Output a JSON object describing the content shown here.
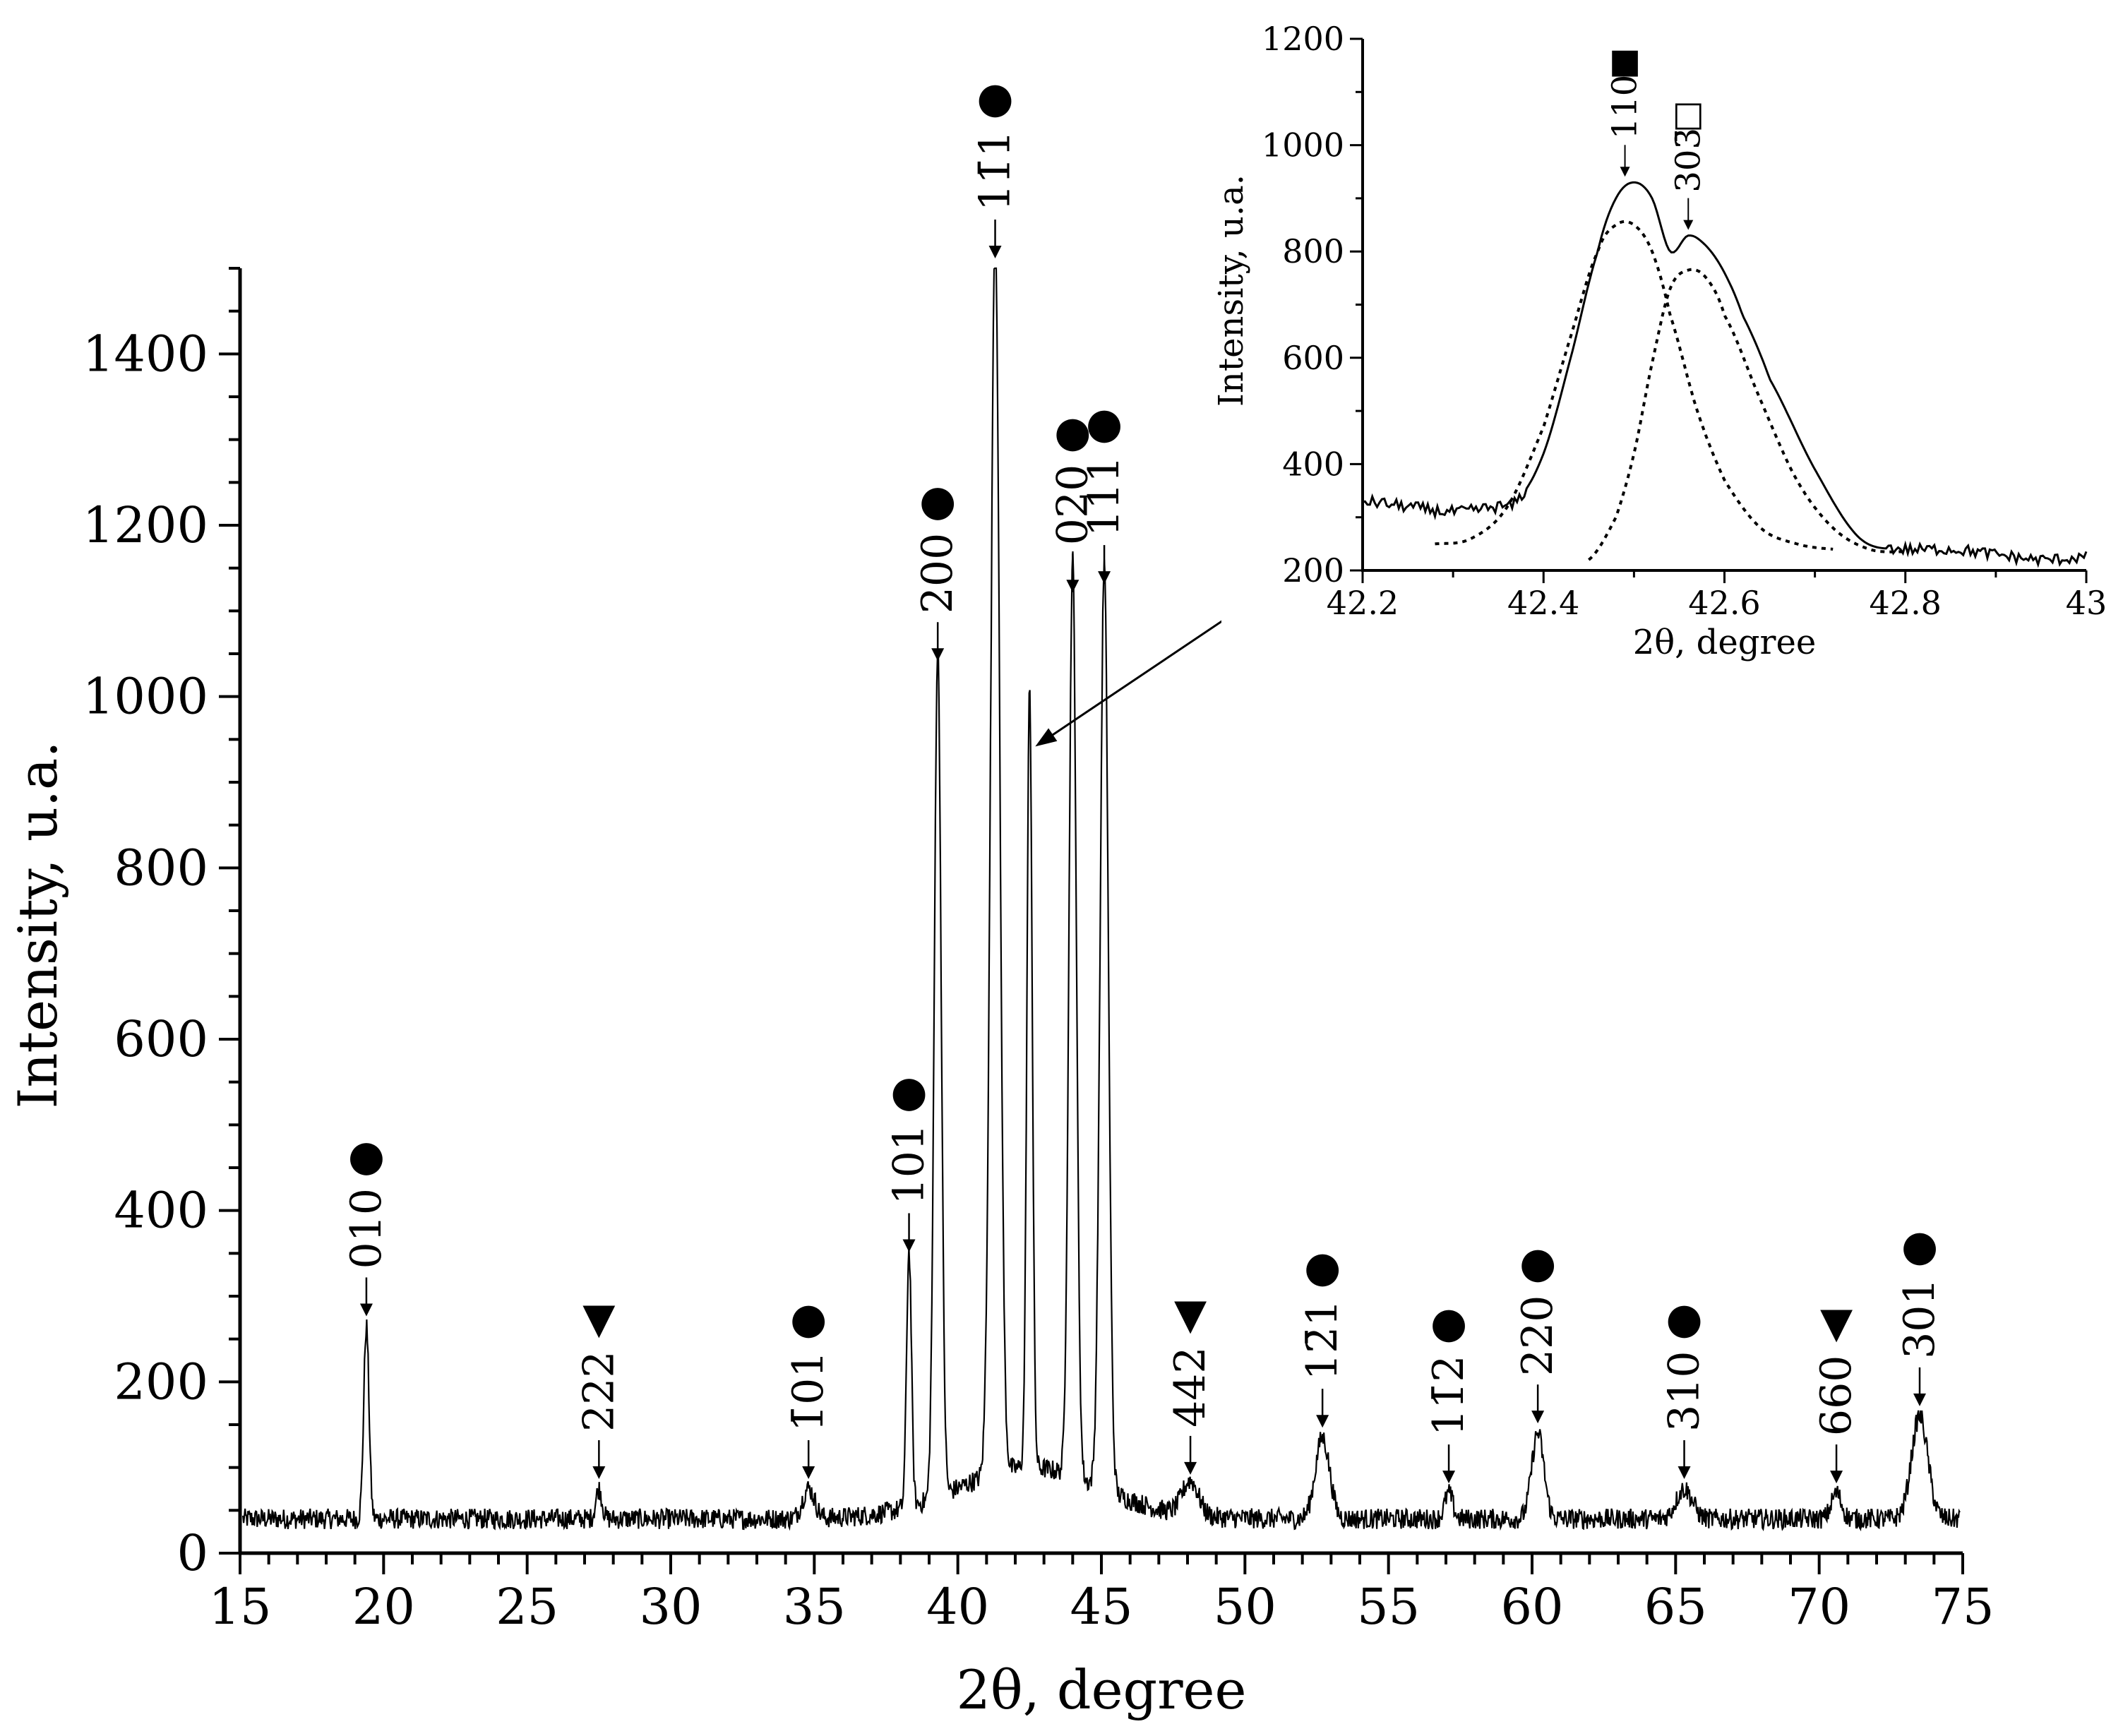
{
  "chart_data": [
    {
      "type": "line",
      "title": "",
      "xlabel": "2θ, degree",
      "ylabel": "Intensity, u.a.",
      "xlim": [
        15,
        75
      ],
      "ylim": [
        0,
        1500
      ],
      "x_ticks": [
        "15",
        "20",
        "25",
        "30",
        "35",
        "40",
        "45",
        "50",
        "55",
        "60",
        "65",
        "70",
        "75"
      ],
      "y_ticks": [
        "0",
        "200",
        "400",
        "600",
        "800",
        "1000",
        "1200",
        "1400"
      ],
      "grid": false,
      "legend": "none",
      "baseline": 40,
      "peaks": [
        {
          "x": 19.4,
          "y": 265,
          "w": 0.13,
          "label": "010",
          "marker": "●"
        },
        {
          "x": 27.5,
          "y": 75,
          "w": 0.15,
          "label": "222",
          "marker": "▼"
        },
        {
          "x": 34.8,
          "y": 75,
          "w": 0.3,
          "label": "1̄01",
          "marker": "●"
        },
        {
          "x": 38.3,
          "y": 340,
          "w": 0.12,
          "label": "101",
          "marker": "●"
        },
        {
          "x": 39.3,
          "y": 1030,
          "w": 0.17,
          "label": "200",
          "marker": "●"
        },
        {
          "x": 41.3,
          "y": 1500,
          "w": 0.22,
          "label": "11̄1",
          "marker": "●"
        },
        {
          "x": 42.5,
          "y": 950,
          "w": 0.13,
          "label": "",
          "marker": ""
        },
        {
          "x": 44.0,
          "y": 1110,
          "w": 0.18,
          "label": "020",
          "marker": "●"
        },
        {
          "x": 45.1,
          "y": 1120,
          "w": 0.2,
          "label": "111",
          "marker": "●"
        },
        {
          "x": 48.1,
          "y": 80,
          "w": 0.4,
          "label": "442",
          "marker": "▼"
        },
        {
          "x": 52.7,
          "y": 135,
          "w": 0.35,
          "label": "12̄1",
          "marker": "●"
        },
        {
          "x": 57.1,
          "y": 70,
          "w": 0.2,
          "label": "11̄2",
          "marker": "●"
        },
        {
          "x": 60.2,
          "y": 140,
          "w": 0.3,
          "label": "220",
          "marker": "●"
        },
        {
          "x": 65.3,
          "y": 75,
          "w": 0.4,
          "label": "310",
          "marker": "●"
        },
        {
          "x": 70.6,
          "y": 70,
          "w": 0.25,
          "label": "660",
          "marker": "▼"
        },
        {
          "x": 73.5,
          "y": 160,
          "w": 0.4,
          "label": "301",
          "marker": "●"
        }
      ]
    },
    {
      "type": "line",
      "title": "",
      "xlabel": "2θ, degree",
      "ylabel": "Intensity, u.a.",
      "xlim": [
        42.2,
        43
      ],
      "ylim": [
        200,
        1200
      ],
      "x_ticks": [
        "42.2",
        "42.4",
        "42.6",
        "42.8",
        "43"
      ],
      "y_ticks": [
        "200",
        "400",
        "600",
        "800",
        "1000",
        "1200"
      ],
      "grid": false,
      "legend": "none",
      "series": [
        {
          "style": "solid",
          "x": [
            42.2,
            42.25,
            42.3,
            42.35,
            42.37,
            42.4,
            42.43,
            42.46,
            42.48,
            42.5,
            42.52,
            42.54,
            42.56,
            42.58,
            42.6,
            42.62,
            42.65,
            42.7,
            42.75,
            42.8,
            42.85,
            42.9,
            42.95,
            43.0
          ],
          "y": [
            330,
            320,
            310,
            320,
            330,
            420,
            600,
            800,
            900,
            930,
            900,
            800,
            830,
            810,
            760,
            680,
            560,
            390,
            260,
            240,
            240,
            230,
            220,
            225
          ]
        },
        {
          "style": "dotted",
          "x": [
            42.28,
            42.32,
            42.36,
            42.4,
            42.43,
            42.46,
            42.48,
            42.5,
            42.52,
            42.54,
            42.57,
            42.6,
            42.64,
            42.68,
            42.72
          ],
          "y": [
            250,
            260,
            320,
            470,
            640,
            800,
            850,
            850,
            800,
            680,
            500,
            370,
            280,
            250,
            240
          ]
        },
        {
          "style": "dotted",
          "x": [
            42.45,
            42.48,
            42.5,
            42.52,
            42.54,
            42.56,
            42.58,
            42.6,
            42.64,
            42.68,
            42.72,
            42.76,
            42.8
          ],
          "y": [
            220,
            300,
            420,
            590,
            730,
            765,
            750,
            680,
            520,
            370,
            280,
            240,
            235
          ]
        }
      ],
      "peaks": [
        {
          "x": 42.49,
          "y": 930,
          "label": "110",
          "marker": "■"
        },
        {
          "x": 42.56,
          "y": 830,
          "label": "303̄",
          "marker": "□"
        }
      ]
    }
  ]
}
